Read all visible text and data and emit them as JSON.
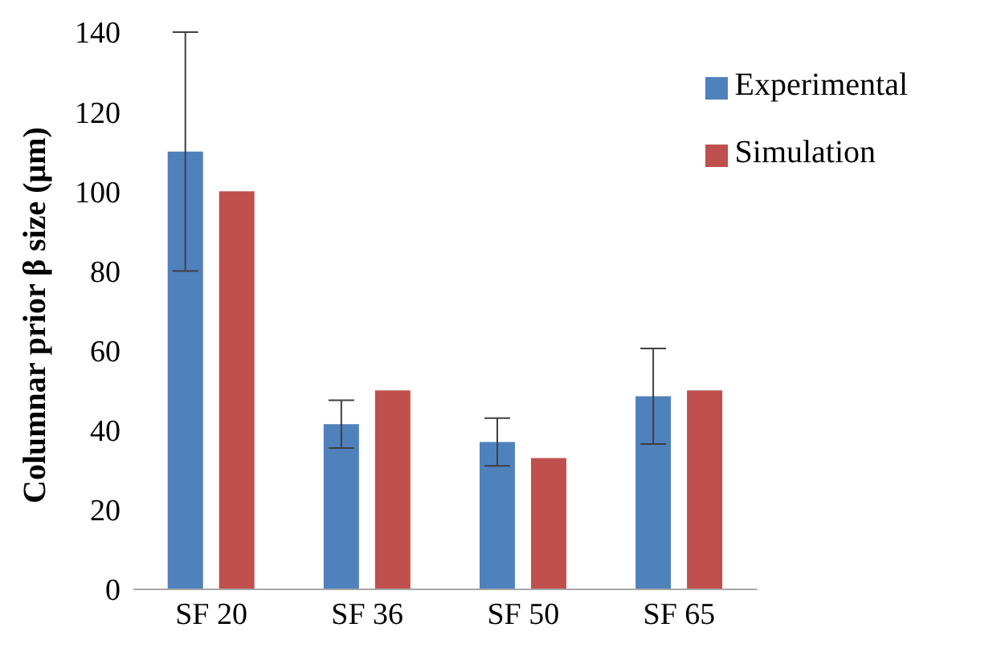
{
  "chart_data": {
    "type": "bar",
    "ylabel": "Columnar prior β size (μm)",
    "categories": [
      "SF 20",
      "SF 36",
      "SF 50",
      "SF 65"
    ],
    "series": [
      {
        "name": "Experimental",
        "color": "#4f81bd",
        "values": [
          110,
          41.5,
          37,
          48.5
        ],
        "errors": [
          30,
          6,
          6,
          12
        ]
      },
      {
        "name": "Simulation",
        "color": "#c0504d",
        "values": [
          100,
          50,
          33,
          50
        ]
      }
    ],
    "ylim": [
      0,
      140
    ],
    "yticks": [
      0,
      20,
      40,
      60,
      80,
      100,
      120,
      140
    ],
    "grid": false,
    "legend": "top right"
  }
}
